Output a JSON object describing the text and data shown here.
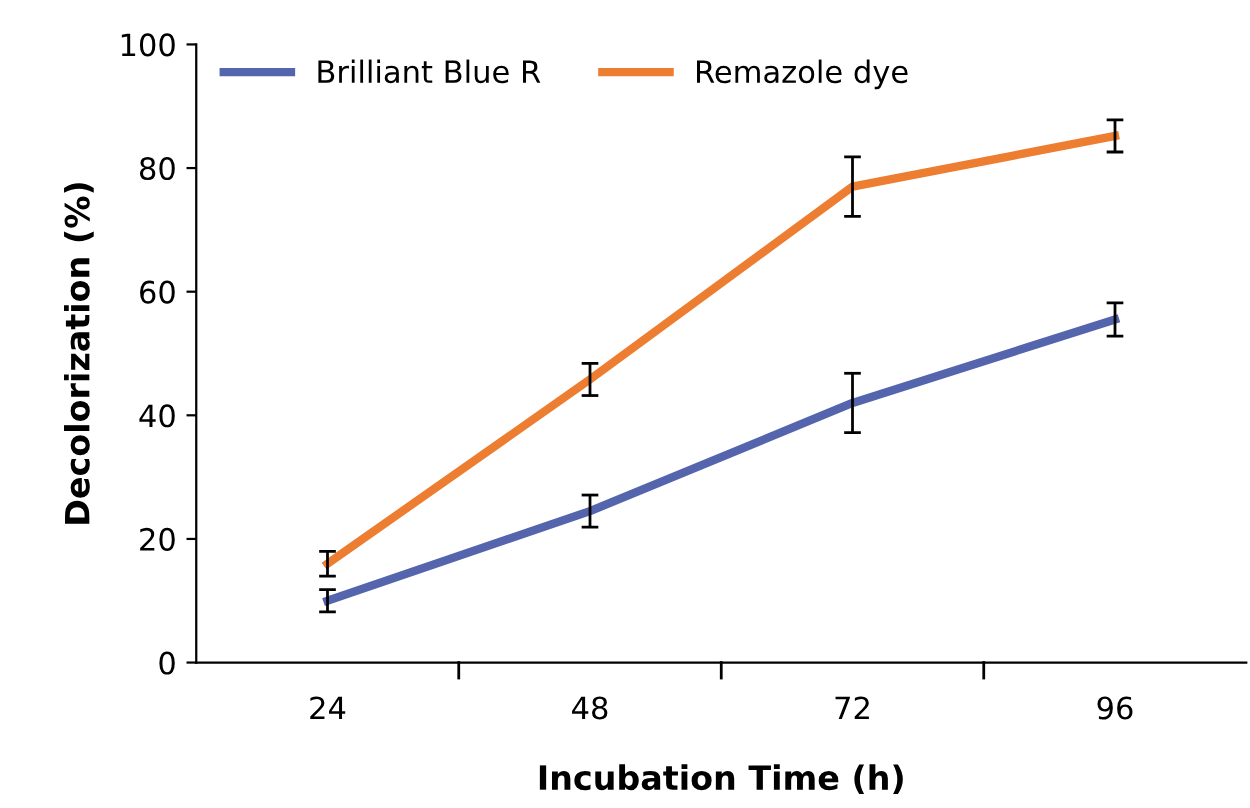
{
  "chart_data": {
    "type": "line",
    "xlabel": "Incubation Time (h)",
    "ylabel": "Decolorization (%)",
    "categories": [
      "24",
      "48",
      "72",
      "96"
    ],
    "series": [
      {
        "name": "Brilliant Blue R",
        "color": "#5565ad",
        "values": [
          10,
          24.5,
          42,
          55.5
        ],
        "errors": [
          1.8,
          2.6,
          4.8,
          2.7
        ]
      },
      {
        "name": "Remazole dye",
        "color": "#ed7d31",
        "values": [
          16,
          45.8,
          77,
          85.2
        ],
        "errors": [
          2,
          2.6,
          4.8,
          2.6
        ]
      }
    ],
    "ylim": [
      0,
      100
    ],
    "yticks": [
      0,
      20,
      40,
      60,
      80,
      100
    ],
    "grid": false,
    "legend": "top left",
    "marker": "none",
    "line_style": "solid"
  }
}
